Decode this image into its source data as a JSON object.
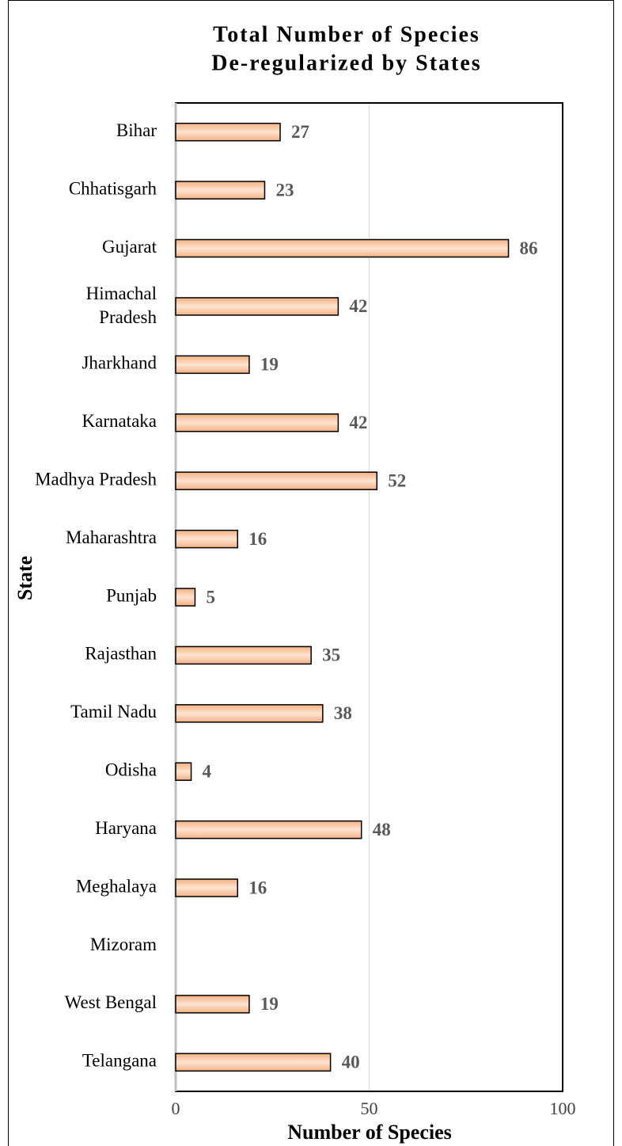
{
  "chart_data": {
    "type": "barh",
    "title": [
      "Total Number of Species",
      "De-regularized by States"
    ],
    "xlabel": "Number of Species",
    "ylabel": "State",
    "categories": [
      "Bihar",
      "Chhatisgarh",
      "Gujarat",
      "Himachal Pradesh",
      "Jharkhand",
      "Karnataka",
      "Madhya Pradesh",
      "Maharashtra",
      "Punjab",
      "Rajasthan",
      "Tamil Nadu",
      "Odisha",
      "Haryana",
      "Meghalaya",
      "Mizoram",
      "West Bengal",
      "Telangana"
    ],
    "values": [
      27,
      23,
      86,
      42,
      19,
      42,
      52,
      16,
      5,
      35,
      38,
      4,
      48,
      16,
      null,
      19,
      40
    ],
    "color": "#f8cbad",
    "xlim": [
      0,
      100
    ],
    "xticks": [
      0,
      50,
      100
    ],
    "grid": true
  }
}
